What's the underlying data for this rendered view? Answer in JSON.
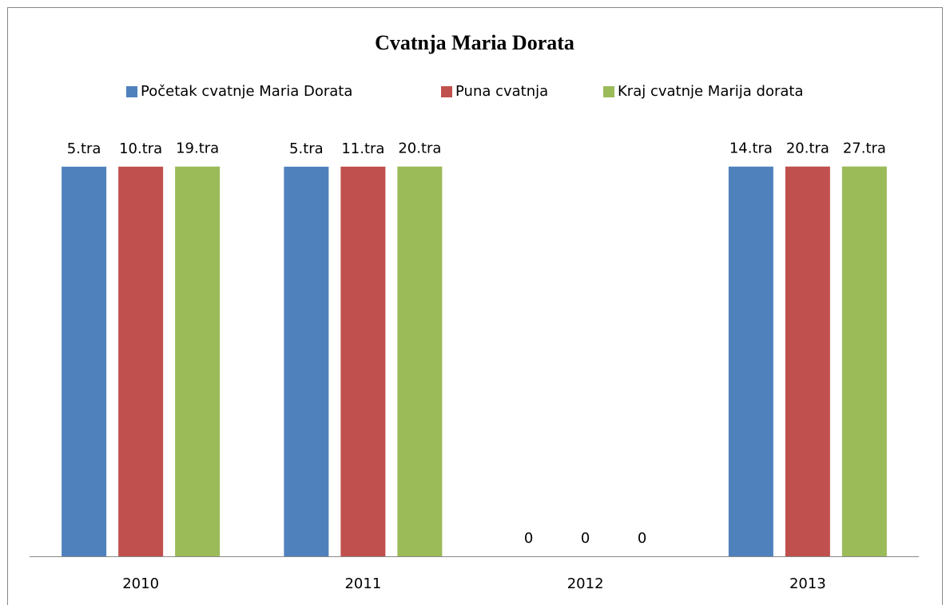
{
  "chart_data": {
    "type": "bar",
    "title": "Cvatnja Maria Dorata",
    "categories": [
      "2010",
      "2011",
      "2012",
      "2013"
    ],
    "ylim": [
      0,
      50000
    ],
    "series": [
      {
        "name": "Početak cvatnje Maria Dorata",
        "color": "#4f81bd",
        "values": [
          41369,
          41369,
          0,
          41378
        ],
        "value_labels": [
          "5.tra",
          "5.tra",
          "0",
          "14.tra"
        ]
      },
      {
        "name": "Puna cvatnja",
        "color": "#c0504d",
        "values": [
          41374,
          41375,
          0,
          41384
        ],
        "value_labels": [
          "10.tra",
          "11.tra",
          "0",
          "20.tra"
        ]
      },
      {
        "name": "Kraj cvatnje Marija dorata",
        "color": "#9bbb59",
        "values": [
          41383,
          41384,
          0,
          41391
        ],
        "value_labels": [
          "19.tra",
          "20.tra",
          "0",
          "27.tra"
        ]
      }
    ]
  }
}
